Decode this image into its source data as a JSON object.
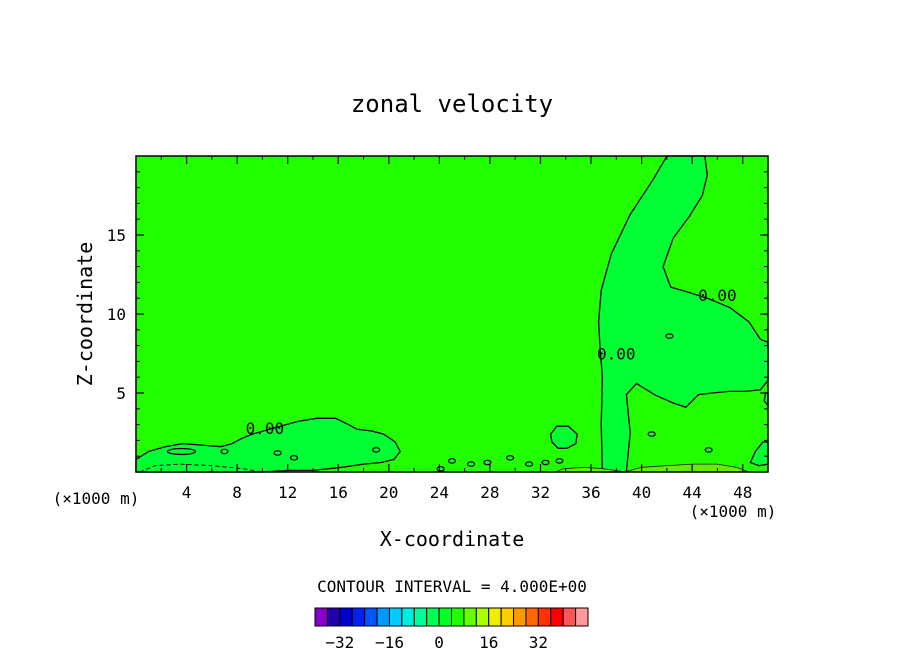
{
  "chart_data": {
    "type": "contour",
    "title": "zonal velocity",
    "xlabel": "X-coordinate",
    "ylabel": "Z-coordinate",
    "x_unit_label_left": "(×1000 m)",
    "x_unit_label_right": "(×1000 m)",
    "xlim": [
      0,
      50
    ],
    "ylim": [
      0,
      20
    ],
    "x_ticks": [
      4,
      8,
      12,
      16,
      20,
      24,
      28,
      32,
      36,
      40,
      44,
      48
    ],
    "y_ticks": [
      5,
      10,
      15
    ],
    "contour_interval_label": "CONTOUR INTERVAL = 4.000E+00",
    "contour_labels": [
      {
        "text": "0.00",
        "x": 10.2,
        "y": 2.8
      },
      {
        "text": "0.00",
        "x": 38.0,
        "y": 7.5
      },
      {
        "text": "0.00",
        "x": 46.0,
        "y": 11.2
      }
    ],
    "fill_colors": {
      "background_zero_band": "#22ff00",
      "positive_region": "#00ff33",
      "positive_region_edge": "#22ee22",
      "near_surface_band": "#66ee00"
    },
    "colorbar": {
      "colors": [
        "#8800cc",
        "#2200aa",
        "#0000cc",
        "#0022ee",
        "#0055ff",
        "#0099ff",
        "#00ccff",
        "#00eedd",
        "#00ff99",
        "#00ff55",
        "#00ff22",
        "#22ff00",
        "#66ff00",
        "#aaff00",
        "#eeee00",
        "#ffcc00",
        "#ff9900",
        "#ff6600",
        "#ff3300",
        "#ff0000",
        "#ff5555",
        "#ff9999"
      ],
      "tick_labels": [
        "−32",
        "−16",
        "0",
        "16",
        "32"
      ],
      "tick_values": [
        -32,
        -16,
        0,
        16,
        32
      ],
      "min": -40,
      "max": 48
    }
  }
}
